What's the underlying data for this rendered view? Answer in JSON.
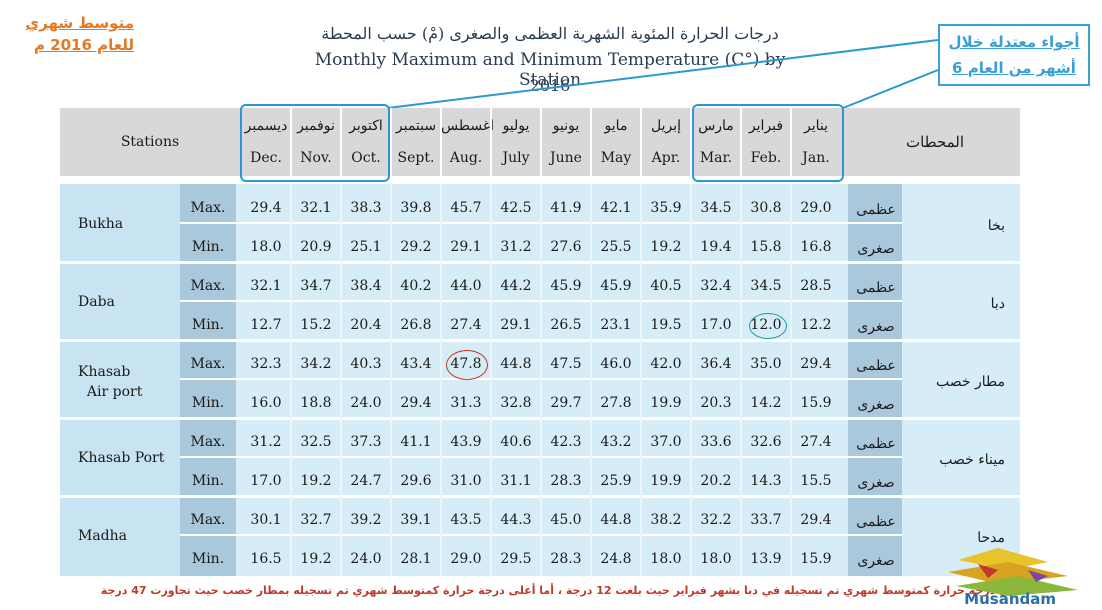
{
  "side_label": {
    "line1": "متوسط شهري",
    "line2": "للعام 2016 م"
  },
  "title": {
    "arabic": "درجات الحرارة المئوية الشهرية العظمى والصغرى (مْ) حسب المحطة",
    "english": "Monthly Maximum and Minimum Temperature (C°)  by Station",
    "year": "2016"
  },
  "callout": {
    "line1": "أجواء معتدلة خلال",
    "line2": "6 أشهر من العام"
  },
  "header": {
    "stations_en": "Stations",
    "stations_ar": "المحطات"
  },
  "months": [
    {
      "ar": "ديسمبر",
      "en": "Dec."
    },
    {
      "ar": "نوفمبر",
      "en": "Nov."
    },
    {
      "ar": "اكتوبر",
      "en": "Oct."
    },
    {
      "ar": "سبتمبر",
      "en": "Sept."
    },
    {
      "ar": "اغسطس",
      "en": "Aug."
    },
    {
      "ar": "يوليو",
      "en": "July"
    },
    {
      "ar": "يونيو",
      "en": "June"
    },
    {
      "ar": "مايو",
      "en": "May"
    },
    {
      "ar": "إبريل",
      "en": "Apr."
    },
    {
      "ar": "مارس",
      "en": "Mar."
    },
    {
      "ar": "فبراير",
      "en": "Feb."
    },
    {
      "ar": "يناير",
      "en": "Jan."
    }
  ],
  "labels": {
    "max_en": "Max.",
    "min_en": "Min.",
    "max_ar": "عظمى",
    "min_ar": "صغرى"
  },
  "stations": [
    {
      "en": "Bukha",
      "ar": "بخا",
      "max": [
        "29.4",
        "32.1",
        "38.3",
        "39.8",
        "45.7",
        "42.5",
        "41.9",
        "42.1",
        "35.9",
        "34.5",
        "30.8",
        "29.0"
      ],
      "min": [
        "18.0",
        "20.9",
        "25.1",
        "29.2",
        "29.1",
        "31.2",
        "27.6",
        "25.5",
        "19.2",
        "19.4",
        "15.8",
        "16.8"
      ]
    },
    {
      "en": "Daba",
      "ar": "دبا",
      "max": [
        "32.1",
        "34.7",
        "38.4",
        "40.2",
        "44.0",
        "44.2",
        "45.9",
        "45.9",
        "40.5",
        "32.4",
        "34.5",
        "28.5"
      ],
      "min": [
        "12.7",
        "15.2",
        "20.4",
        "26.8",
        "27.4",
        "29.1",
        "26.5",
        "23.1",
        "19.5",
        "17.0",
        "12.0",
        "12.2"
      ]
    },
    {
      "en": "Khasab\n  Air port",
      "ar": "مطار خصب",
      "max": [
        "32.3",
        "34.2",
        "40.3",
        "43.4",
        "47.8",
        "44.8",
        "47.5",
        "46.0",
        "42.0",
        "36.4",
        "35.0",
        "29.4"
      ],
      "min": [
        "16.0",
        "18.8",
        "24.0",
        "29.4",
        "31.3",
        "32.8",
        "29.7",
        "27.8",
        "19.9",
        "20.3",
        "14.2",
        "15.9"
      ]
    },
    {
      "en": "Khasab Port",
      "ar": "ميناء خصب",
      "max": [
        "31.2",
        "32.5",
        "37.3",
        "41.1",
        "43.9",
        "40.6",
        "42.3",
        "43.2",
        "37.0",
        "33.6",
        "32.6",
        "27.4"
      ],
      "min": [
        "17.0",
        "19.2",
        "24.7",
        "29.6",
        "31.0",
        "31.1",
        "28.3",
        "25.9",
        "19.9",
        "20.2",
        "14.3",
        "15.5"
      ]
    },
    {
      "en": "Madha",
      "ar": "مدحا",
      "max": [
        "30.1",
        "32.7",
        "39.2",
        "39.1",
        "43.5",
        "44.3",
        "45.0",
        "44.8",
        "38.2",
        "32.2",
        "33.7",
        "29.4"
      ],
      "min": [
        "16.5",
        "19.2",
        "24.0",
        "28.1",
        "29.0",
        "29.5",
        "28.3",
        "24.8",
        "18.0",
        "18.0",
        "13.9",
        "15.9"
      ]
    }
  ],
  "footnote": "أقل درجة حرارة كمتوسط شهري تم تسجيله في دبا بشهر فبراير حيث بلغت 12 درجة ، أما أعلى درجة حرارة كمتوسط شهري تم تسجيله بمطار خصب حيث تجاوزت 47 درجة",
  "logo_text": "Musandam",
  "colors": {
    "header_band": "#d8d8d8",
    "body": "#d6edf7",
    "label_col": "#a9c8dc",
    "box": "#2a99d3",
    "accent_orange": "#e8781f",
    "footnote": "#c0392b"
  }
}
